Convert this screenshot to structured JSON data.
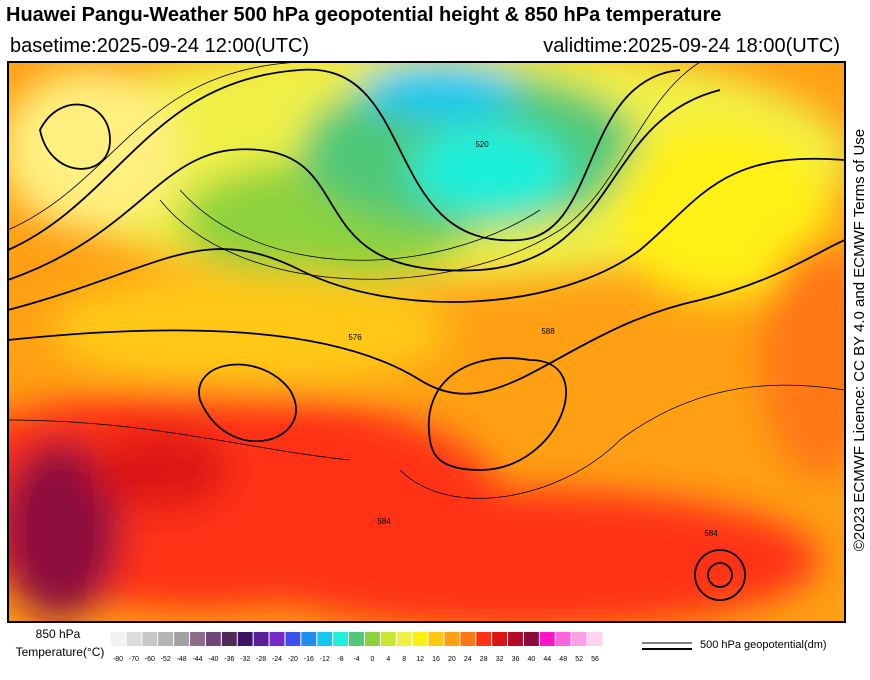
{
  "header": {
    "title": "Huawei Pangu-Weather 500 hPa geopotential height & 850 hPa temperature",
    "basetime": "basetime:2025-09-24 12:00(UTC)",
    "validtime": "validtime:2025-09-24 18:00(UTC)"
  },
  "licence": "©2023 ECMWF Licence: CC BY 4.0 and ECMWF Terms of Use",
  "map": {
    "contour_labels": [
      "576",
      "588",
      "584",
      "584",
      "520"
    ]
  },
  "colorbar": {
    "label_line1": "850 hPa",
    "label_line2": "Temperature(°C)",
    "ticks": [
      -80,
      -70,
      -60,
      -52,
      -48,
      -44,
      -40,
      -36,
      -32,
      -28,
      -24,
      -20,
      -16,
      -12,
      -8,
      -4,
      0,
      4,
      8,
      12,
      16,
      20,
      24,
      28,
      32,
      36,
      40,
      44,
      48,
      52,
      56
    ],
    "colors": [
      "#f2f2f2",
      "#dcdcdc",
      "#c8c8c8",
      "#b4b4b4",
      "#a0a0a0",
      "#8c6e8c",
      "#6e4678",
      "#50285a",
      "#3c1464",
      "#5a1e96",
      "#7828c8",
      "#3c50f0",
      "#1e8cf0",
      "#14c8f0",
      "#1ef0dc",
      "#50c878",
      "#8cd23c",
      "#c8e632",
      "#f0f046",
      "#fff014",
      "#ffc814",
      "#ffa014",
      "#ff7814",
      "#ff3214",
      "#dc1414",
      "#b40a28",
      "#8c0a3c",
      "#ff14c8",
      "#ff64dc",
      "#ffa0e6",
      "#ffd2f0"
    ],
    "contour_legend": "500 hPa geopotential(dm)"
  }
}
